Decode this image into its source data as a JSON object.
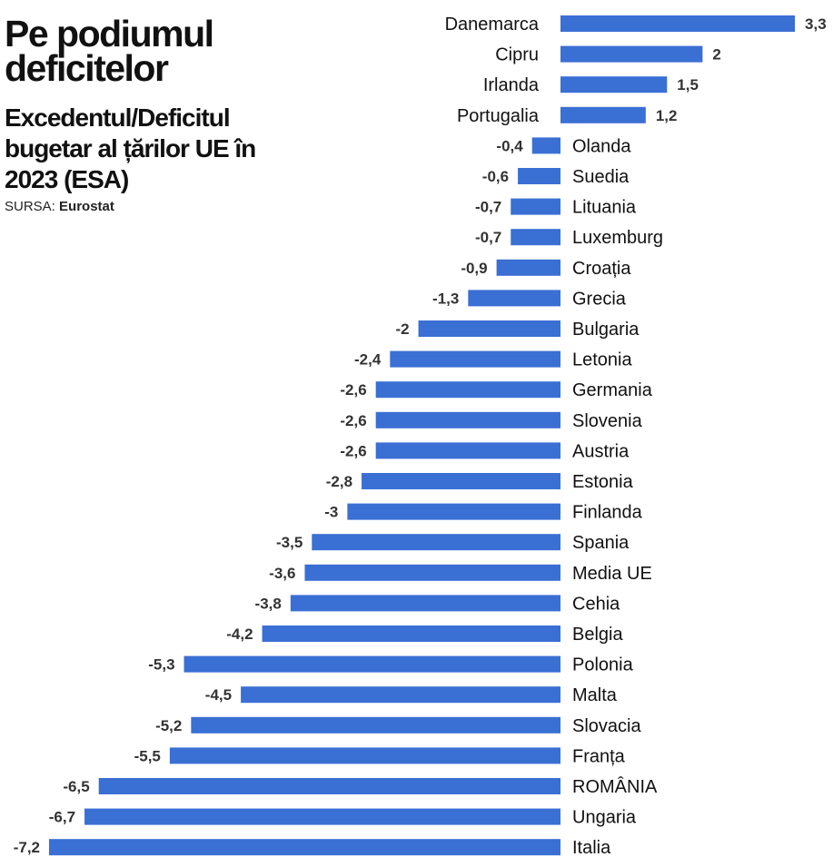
{
  "header": {
    "title": "Pe podiumul deficitelor",
    "subtitle": "Excedentul/Deficitul bugetar al țărilor UE în 2023 (ESA)",
    "source_label": "SURSA:",
    "source_name": "Eurostat"
  },
  "chart_data": {
    "type": "bar",
    "orientation": "horizontal",
    "bar_color": "#3a6fd4",
    "grid": false,
    "legend": "none",
    "xlim": [
      -7.2,
      3.3
    ],
    "categories": [
      "Danemarca",
      "Cipru",
      "Irlanda",
      "Portugalia",
      "Olanda",
      "Suedia",
      "Lituania",
      "Luxemburg",
      "Croația",
      "Grecia",
      "Bulgaria",
      "Letonia",
      "Germania",
      "Slovenia",
      "Austria",
      "Estonia",
      "Finlanda",
      "Spania",
      "Media UE",
      "Cehia",
      "Belgia",
      "Polonia",
      "Malta",
      "Slovacia",
      "Franța",
      "ROMÂNIA",
      "Ungaria",
      "Italia"
    ],
    "values": [
      3.3,
      2,
      1.5,
      1.2,
      -0.4,
      -0.6,
      -0.7,
      -0.7,
      -0.9,
      -1.3,
      -2,
      -2.4,
      -2.6,
      -2.6,
      -2.6,
      -2.8,
      -3,
      -3.5,
      -3.6,
      -3.8,
      -4.2,
      -5.3,
      -4.5,
      -5.2,
      -5.5,
      -6.5,
      -6.7,
      -7.2
    ],
    "value_labels": [
      "3,3",
      "2",
      "1,5",
      "1,2",
      "-0,4",
      "-0,6",
      "-0,7",
      "-0,7",
      "-0,9",
      "-1,3",
      "-2",
      "-2,4",
      "-2,6",
      "-2,6",
      "-2,6",
      "-2,8",
      "-3",
      "-3,5",
      "-3,6",
      "-3,8",
      "-4,2",
      "-5,3",
      "-4,5",
      "-5,2",
      "-5,5",
      "-6,5",
      "-6,7",
      "-7,2"
    ]
  }
}
